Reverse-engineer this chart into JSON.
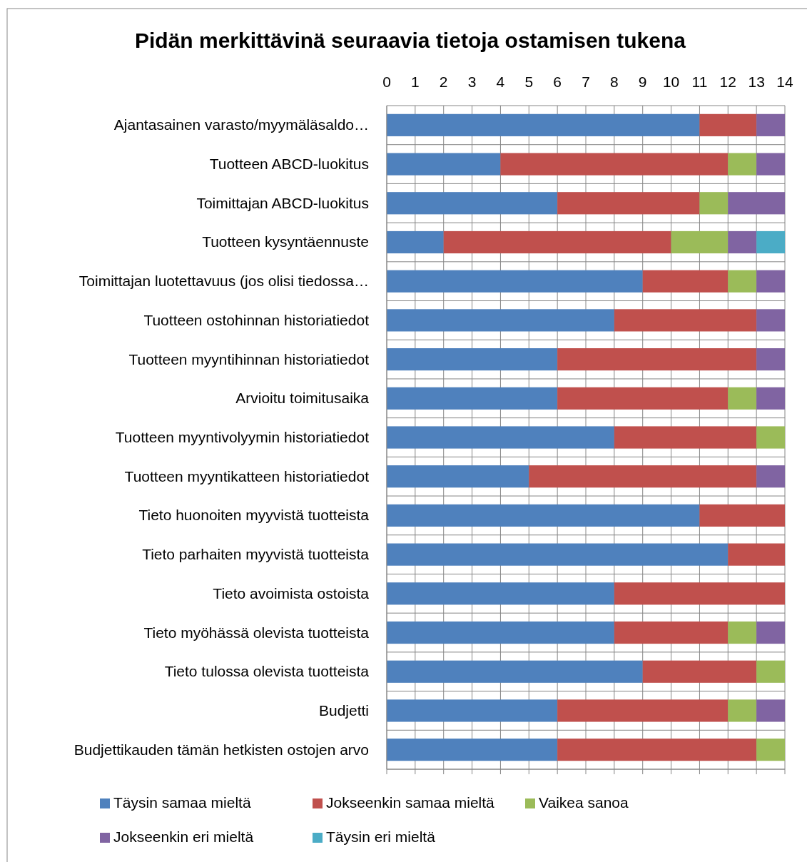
{
  "chart_data": {
    "type": "bar",
    "orientation": "horizontal",
    "stacked": true,
    "title": "Pidän merkittävinä seuraavia tietoja ostamisen tukena",
    "categories": [
      "Ajantasainen varasto/myymäläsaldo…",
      "Tuotteen ABCD-luokitus",
      "Toimittajan ABCD-luokitus",
      "Tuotteen kysyntäennuste",
      "Toimittajan luotettavuus (jos olisi tiedossa…",
      "Tuotteen ostohinnan historiatiedot",
      "Tuotteen myyntihinnan historiatiedot",
      "Arvioitu toimitusaika",
      "Tuotteen myyntivolyymin historiatiedot",
      "Tuotteen myyntikatteen historiatiedot",
      "Tieto huonoiten myyvistä tuotteista",
      "Tieto parhaiten myyvistä tuotteista",
      "Tieto avoimista ostoista",
      "Tieto myöhässä olevista tuotteista",
      "Tieto tulossa olevista tuotteista",
      "Budjetti",
      "Budjettikauden tämän hetkisten ostojen arvo"
    ],
    "series": [
      {
        "name": "Täysin samaa mieltä",
        "color": "#4f81bd",
        "values": [
          11,
          4,
          6,
          2,
          9,
          8,
          6,
          6,
          8,
          5,
          11,
          12,
          8,
          8,
          9,
          6,
          6
        ]
      },
      {
        "name": "Jokseenkin samaa mieltä",
        "color": "#c0504d",
        "values": [
          2,
          8,
          5,
          8,
          3,
          5,
          7,
          6,
          5,
          8,
          3,
          2,
          6,
          4,
          4,
          6,
          7
        ]
      },
      {
        "name": "Vaikea sanoa",
        "color": "#9bbb59",
        "values": [
          0,
          1,
          1,
          2,
          1,
          0,
          0,
          1,
          1,
          0,
          0,
          0,
          0,
          1,
          1,
          1,
          1
        ]
      },
      {
        "name": "Jokseenkin eri mieltä",
        "color": "#8064a2",
        "values": [
          1,
          1,
          2,
          1,
          1,
          1,
          1,
          1,
          0,
          1,
          0,
          0,
          0,
          1,
          0,
          1,
          0
        ]
      },
      {
        "name": "Täysin eri mieltä",
        "color": "#4bacc6",
        "values": [
          0,
          0,
          0,
          1,
          0,
          0,
          0,
          0,
          0,
          0,
          0,
          0,
          0,
          0,
          0,
          0,
          0
        ]
      }
    ],
    "xlim": [
      0,
      14
    ],
    "xticks": [
      0,
      1,
      2,
      3,
      4,
      5,
      6,
      7,
      8,
      9,
      10,
      11,
      12,
      13,
      14
    ],
    "grid": true,
    "legend": "bottom"
  }
}
